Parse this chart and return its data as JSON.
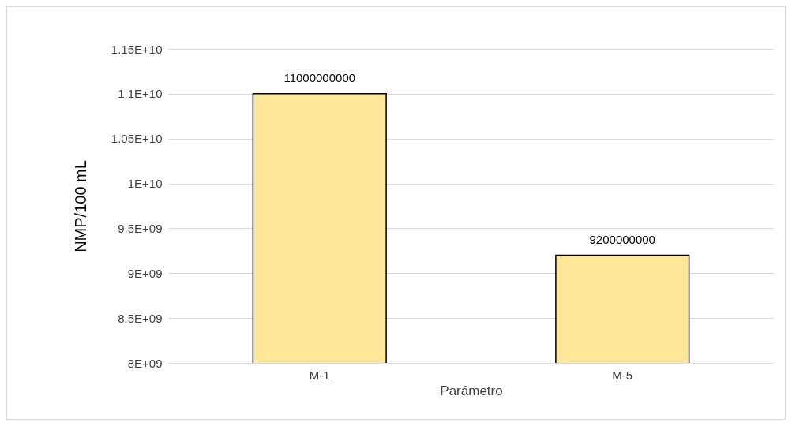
{
  "chart_data": {
    "type": "bar",
    "xlabel": "Parámetro",
    "ylabel": "NMP/100 mL",
    "categories": [
      "M-1",
      "M-5"
    ],
    "values": [
      11000000000,
      9200000000
    ],
    "color": "#ffe699",
    "ylim": [
      8000000000,
      11500000000
    ],
    "yticks": [
      {
        "value": 8000000000,
        "label": "8E+09"
      },
      {
        "value": 8500000000,
        "label": "8.5E+09"
      },
      {
        "value": 9000000000,
        "label": "9E+09"
      },
      {
        "value": 9500000000,
        "label": "9.5E+09"
      },
      {
        "value": 10000000000,
        "label": "1E+10"
      },
      {
        "value": 10500000000,
        "label": "1.05E+10"
      },
      {
        "value": 11000000000,
        "label": "1.1E+10"
      },
      {
        "value": 11500000000,
        "label": "1.15E+10"
      }
    ],
    "grid": "y",
    "data_labels": true
  }
}
